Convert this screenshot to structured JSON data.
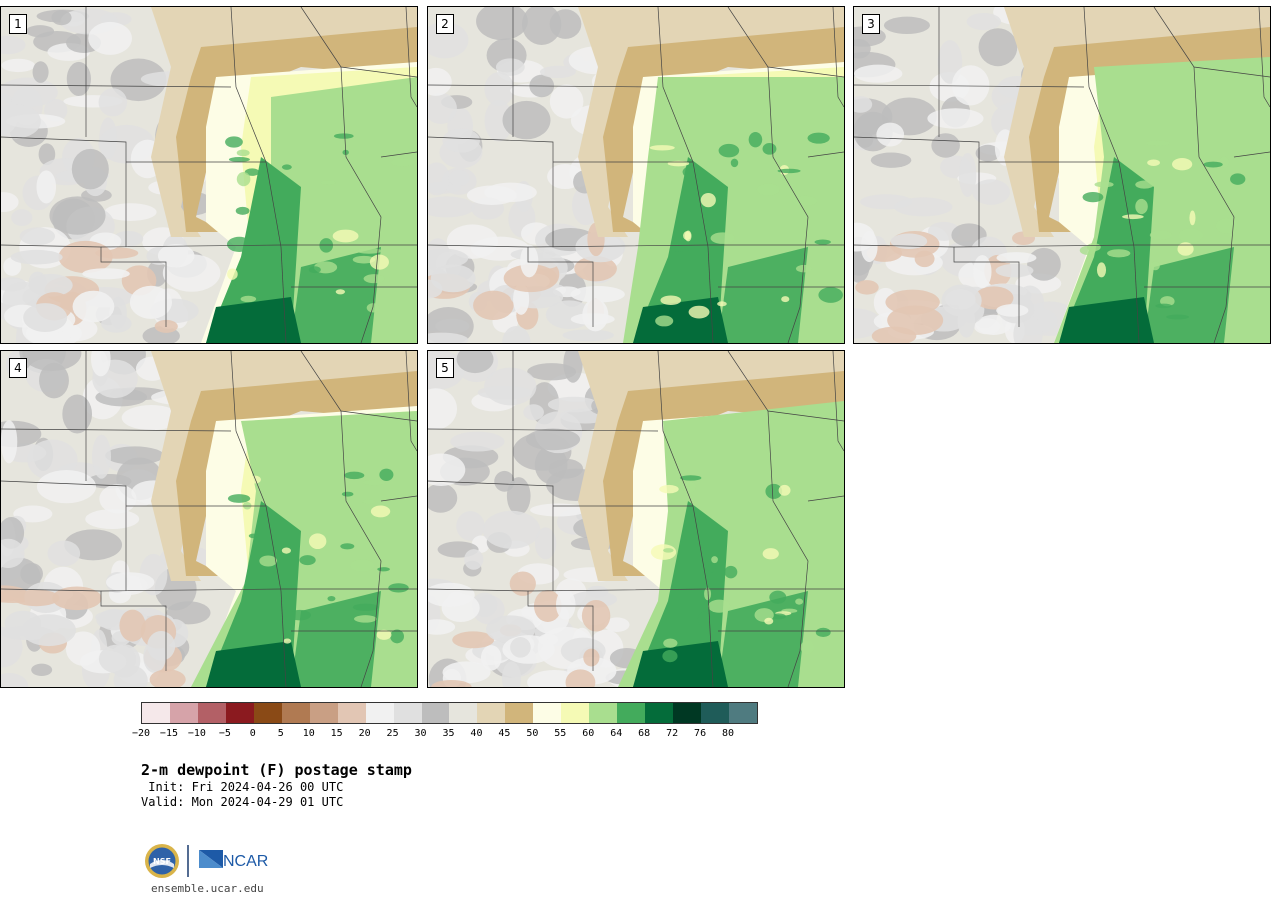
{
  "panels": [
    {
      "label": "1"
    },
    {
      "label": "2"
    },
    {
      "label": "3"
    },
    {
      "label": "4"
    },
    {
      "label": "5"
    }
  ],
  "colorbar": {
    "colors": [
      "#f5e8ea",
      "#d6a3a9",
      "#b36066",
      "#8b1a1f",
      "#8a4a16",
      "#b07a52",
      "#c99f84",
      "#e2c6b4",
      "#f1f1f1",
      "#e0e0e0",
      "#bdbdbd",
      "#e6e5dd",
      "#e3d5b5",
      "#d1b57b",
      "#fdfde6",
      "#f5fab5",
      "#a9de8f",
      "#43ab5c",
      "#046c3a",
      "#003823",
      "#1f5c59",
      "#4f7b80"
    ],
    "tick_labels": [
      "−20",
      "−15",
      "−10",
      "−5",
      "0",
      "5",
      "10",
      "15",
      "20",
      "25",
      "30",
      "35",
      "40",
      "45",
      "50",
      "55",
      "60",
      "64",
      "68",
      "72",
      "76",
      "80"
    ]
  },
  "title": "2-m dewpoint (F) postage stamp",
  "init": " Init: Fri 2024-04-26 00 UTC",
  "valid": "Valid: Mon 2024-04-29 01 UTC",
  "logos": {
    "nsf": "NSF",
    "ncar": "NCAR"
  },
  "site": "ensemble.ucar.edu"
}
